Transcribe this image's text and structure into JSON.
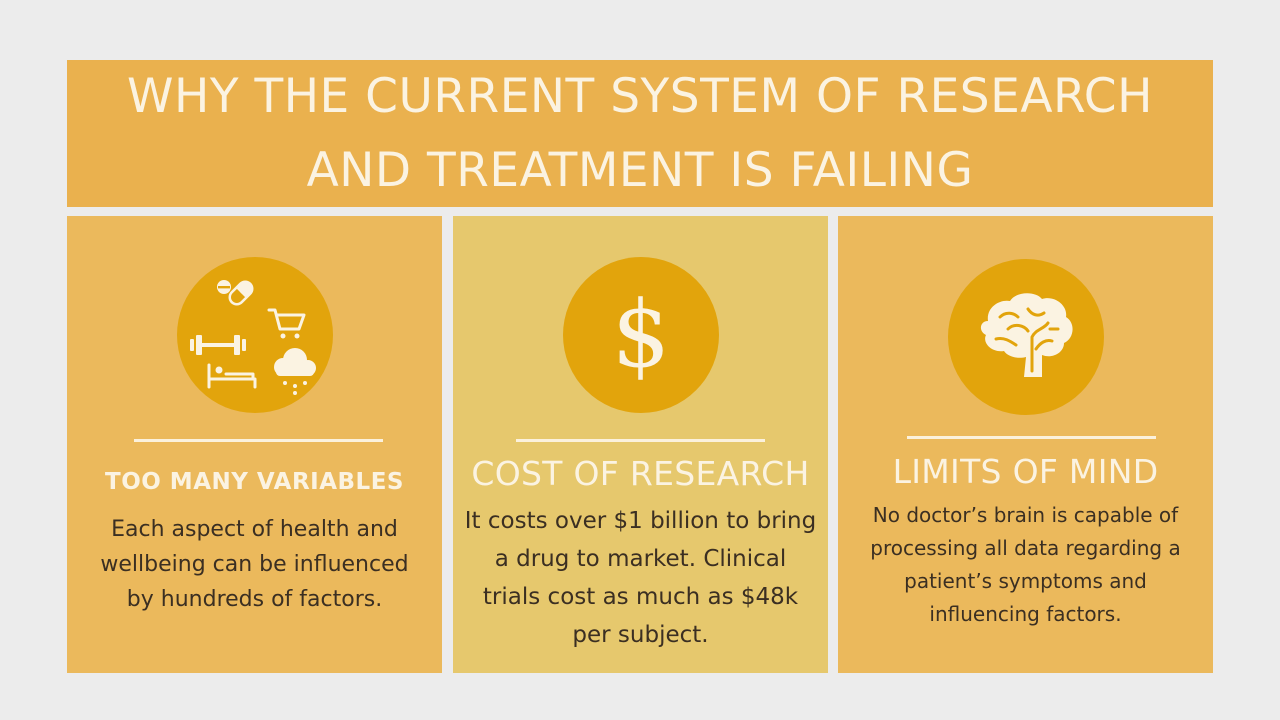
{
  "header": {
    "title": "WHY THE CURRENT SYSTEM OF RESEARCH AND TREATMENT IS FAILING"
  },
  "panels": [
    {
      "title": "TOO MANY VARIABLES",
      "body": "Each aspect of health and wellbeing can be influenced by hundreds of factors.",
      "icons": [
        "pills-icon",
        "shopping-cart-icon",
        "dumbbell-icon",
        "bed-icon",
        "rain-cloud-icon"
      ]
    },
    {
      "title": "COST OF RESEARCH",
      "body": "It costs over $1 billion to bring a drug to market. Clinical trials cost as much as $48k per subject.",
      "icon_glyph": "$",
      "icons": [
        "dollar-icon"
      ]
    },
    {
      "title": "LIMITS OF MIND",
      "body": "No doctor’s brain is capable of processing all data regarding a patient’s symptoms and influencing factors.",
      "icons": [
        "brain-icon"
      ]
    }
  ],
  "colors": {
    "background": "#ececec",
    "header": "#eab14e",
    "panel": "#ebb95c",
    "panel_middle": "#e6c86d",
    "circle": "#e2a40c",
    "text_light": "#fbf3e2",
    "text_dark": "#3b2f22"
  }
}
